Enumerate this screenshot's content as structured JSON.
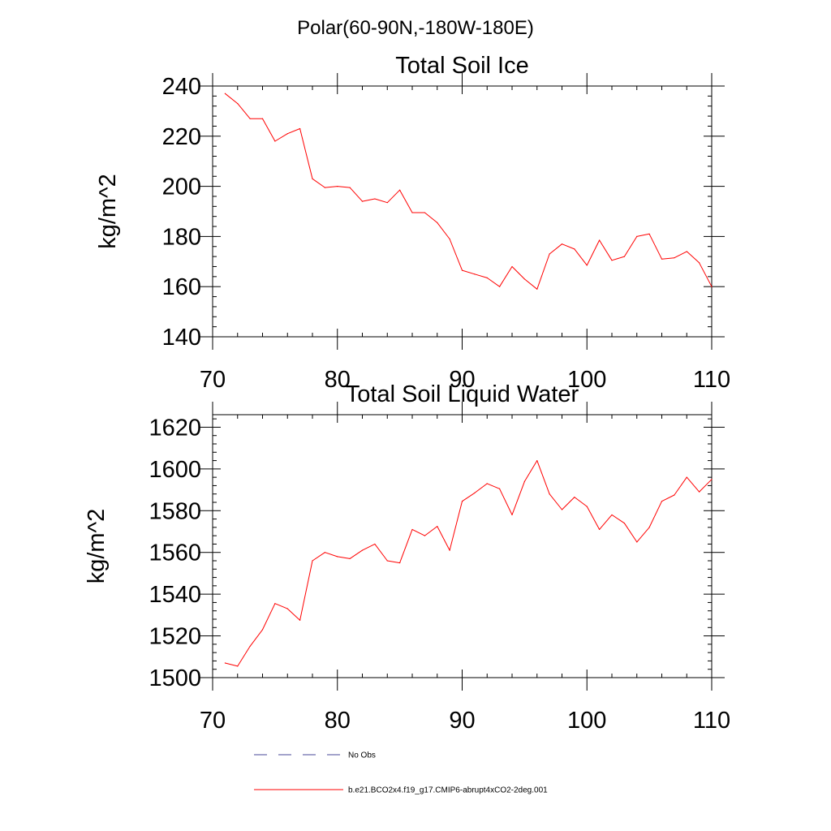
{
  "page_title": "Polar(60-90N,-180W-180E)",
  "chart_data": [
    {
      "type": "line",
      "title": "Total Soil Ice",
      "xlabel": "",
      "ylabel": "kg/m^2",
      "xlim": [
        70,
        110
      ],
      "ylim": [
        140,
        240
      ],
      "x_ticks": [
        70,
        80,
        90,
        100,
        110
      ],
      "y_ticks": [
        140,
        160,
        180,
        200,
        220,
        240
      ],
      "grid": false,
      "series": [
        {
          "color": "#ff0000",
          "x": [
            71,
            72,
            73,
            74,
            75,
            76,
            77,
            78,
            79,
            80,
            81,
            82,
            83,
            84,
            85,
            86,
            87,
            88,
            89,
            90,
            91,
            92,
            93,
            94,
            95,
            96,
            97,
            98,
            99,
            100,
            101,
            102,
            103,
            104,
            105,
            106,
            107,
            108,
            109,
            110
          ],
          "values": [
            237,
            233,
            227,
            227,
            218,
            221,
            223,
            203,
            199.5,
            200,
            199.5,
            194,
            195,
            193.5,
            198.5,
            189.5,
            189.5,
            185.5,
            179,
            166.5,
            165,
            163.5,
            160,
            168,
            163,
            159,
            173,
            177,
            175,
            168.5,
            178.5,
            170.5,
            172,
            180,
            181,
            171,
            171.5,
            174,
            169.5,
            160
          ]
        }
      ]
    },
    {
      "type": "line",
      "title": "Total Soil Liquid Water",
      "xlabel": "",
      "ylabel": "kg/m^2",
      "xlim": [
        70,
        110
      ],
      "ylim": [
        1500,
        1626
      ],
      "x_ticks": [
        70,
        80,
        90,
        100,
        110
      ],
      "y_ticks": [
        1500,
        1520,
        1540,
        1560,
        1580,
        1600,
        1620
      ],
      "grid": false,
      "series": [
        {
          "color": "#ff0000",
          "x": [
            71,
            72,
            73,
            74,
            75,
            76,
            77,
            78,
            79,
            80,
            81,
            82,
            83,
            84,
            85,
            86,
            87,
            88,
            89,
            90,
            91,
            92,
            93,
            94,
            95,
            96,
            97,
            98,
            99,
            100,
            101,
            102,
            103,
            104,
            105,
            106,
            107,
            108,
            109,
            110
          ],
          "values": [
            1507,
            1505.5,
            1515,
            1523,
            1535.5,
            1533,
            1527.5,
            1556,
            1560,
            1558,
            1557,
            1561,
            1564,
            1556,
            1555,
            1571,
            1568,
            1572.5,
            1561,
            1584.5,
            1588.5,
            1593,
            1590.5,
            1578,
            1594,
            1604,
            1588,
            1580.5,
            1586.5,
            1582,
            1571,
            1578,
            1574,
            1565,
            1572,
            1584.5,
            1587.5,
            1596,
            1589,
            1595
          ]
        }
      ]
    }
  ],
  "legend": {
    "position": "bottom",
    "entries": [
      {
        "label": "No Obs",
        "color": "#4a4a9a",
        "dash": "dashed"
      },
      {
        "label": "b.e21.BCO2x4.f19_g17.CMIP6-abrupt4xCO2-2deg.001",
        "color": "#ff0000",
        "dash": "solid"
      }
    ]
  }
}
